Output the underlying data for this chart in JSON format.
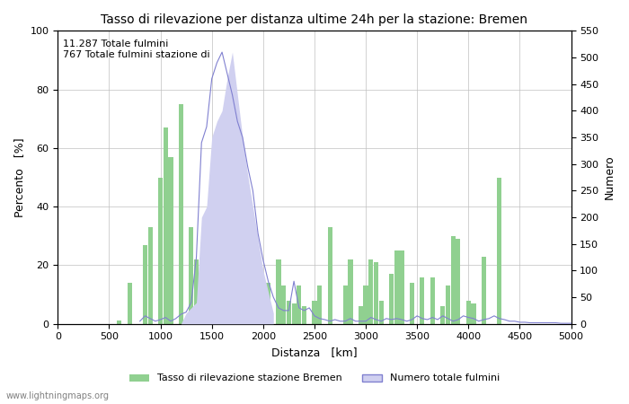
{
  "title": "Tasso di rilevazione per distanza ultime 24h per la stazione: Bremen",
  "annotation_line1": "11.287 Totale fulmini",
  "annotation_line2": "767 Totale fulmini stazione di",
  "xlabel": "Distanza   [km]",
  "ylabel_left": "Percento   [%]",
  "ylabel_right": "Numero",
  "xlim": [
    0,
    5000
  ],
  "ylim_left": [
    0,
    100
  ],
  "ylim_right": [
    0,
    550
  ],
  "yticks_left": [
    0,
    20,
    40,
    60,
    80,
    100
  ],
  "yticks_right": [
    0,
    50,
    100,
    150,
    200,
    250,
    300,
    350,
    400,
    450,
    500,
    550
  ],
  "xticks": [
    0,
    500,
    1000,
    1500,
    2000,
    2500,
    3000,
    3500,
    4000,
    4500,
    5000
  ],
  "watermark": "www.lightningmaps.org",
  "legend_green": "Tasso di rilevazione stazione Bremen",
  "legend_blue": "Numero totale fulmini",
  "bar_color": "#90d090",
  "fill_color": "#d0d0f0",
  "line_color": "#8080d0",
  "background_color": "#ffffff",
  "grid_color": "#c0c0c0",
  "green_bars_x": [
    600,
    650,
    700,
    750,
    800,
    850,
    900,
    950,
    1000,
    1050,
    1100,
    1150,
    1200,
    1250,
    1300,
    1350,
    1400,
    1450,
    1500,
    1550,
    1600,
    1650,
    1700,
    1750,
    1800,
    1850,
    1900,
    1950,
    2000,
    2050,
    2100,
    2150,
    2200,
    2250,
    2300,
    2350,
    2400,
    2450,
    2500,
    2550,
    2600,
    2650,
    2700,
    2750,
    2800,
    2850,
    2900,
    2950,
    3000,
    3050,
    3100,
    3150,
    3200,
    3250,
    3300,
    3350,
    3400,
    3450,
    3500,
    3550,
    3600,
    3650,
    3700,
    3750,
    3800,
    3850,
    3900,
    3950,
    4000,
    4050,
    4100,
    4150,
    4200,
    4250,
    4300,
    4350,
    4400,
    4450,
    4500,
    4550,
    4600,
    4650,
    4700,
    4750,
    4800,
    4850,
    4900,
    4950
  ],
  "green_bars_h": [
    1,
    0,
    14,
    0,
    0,
    27,
    33,
    0,
    50,
    67,
    57,
    0,
    75,
    0,
    33,
    22,
    10,
    7,
    8,
    7,
    13,
    12,
    0,
    0,
    0,
    0,
    6,
    7,
    0,
    14,
    0,
    22,
    13,
    8,
    7,
    13,
    6,
    0,
    8,
    13,
    0,
    33,
    0,
    0,
    13,
    22,
    0,
    6,
    13,
    22,
    21,
    8,
    0,
    17,
    25,
    25,
    0,
    14,
    0,
    16,
    0,
    16,
    0,
    6,
    13,
    30,
    29,
    0,
    8,
    7,
    0,
    23,
    0,
    0,
    50,
    0,
    0,
    0,
    0,
    0,
    0,
    0,
    0,
    0,
    0,
    0
  ],
  "blue_fill_x": [
    1200,
    1250,
    1300,
    1350,
    1400,
    1450,
    1500,
    1550,
    1600,
    1650,
    1700,
    1750,
    1800,
    1850,
    1900,
    1950,
    2000,
    2050,
    2100
  ],
  "blue_fill_y": [
    0,
    20,
    30,
    40,
    200,
    220,
    350,
    380,
    400,
    460,
    510,
    430,
    350,
    280,
    220,
    160,
    100,
    60,
    20
  ],
  "blue_line_x": [
    800,
    850,
    900,
    950,
    1000,
    1050,
    1100,
    1150,
    1200,
    1250,
    1300,
    1350,
    1400,
    1450,
    1500,
    1550,
    1600,
    1650,
    1700,
    1750,
    1800,
    1850,
    1900,
    1950,
    2000,
    2050,
    2100,
    2150,
    2200,
    2250,
    2300,
    2350,
    2400,
    2450,
    2500,
    2550,
    2600,
    2650,
    2700,
    2750,
    2800,
    2850,
    2900,
    2950,
    3000,
    3050,
    3100,
    3150,
    3200,
    3250,
    3300,
    3350,
    3400,
    3450,
    3500,
    3550,
    3600,
    3650,
    3700,
    3750,
    3800,
    3850,
    3900,
    3950,
    4000,
    4050,
    4100,
    4150,
    4200,
    4250,
    4300,
    4350,
    4400,
    4450,
    4500,
    4550,
    4600,
    4650,
    4700,
    4750,
    4800,
    4850,
    4900,
    4950,
    5000
  ],
  "blue_line_y": [
    5,
    15,
    10,
    5,
    8,
    12,
    5,
    10,
    18,
    22,
    40,
    125,
    340,
    370,
    460,
    490,
    510,
    470,
    430,
    380,
    350,
    295,
    250,
    170,
    120,
    80,
    50,
    30,
    25,
    25,
    80,
    30,
    25,
    30,
    15,
    10,
    8,
    5,
    8,
    5,
    5,
    10,
    5,
    5,
    5,
    12,
    8,
    5,
    10,
    8,
    10,
    8,
    5,
    8,
    15,
    10,
    8,
    12,
    8,
    15,
    10,
    5,
    8,
    15,
    12,
    10,
    5,
    8,
    10,
    15,
    10,
    8,
    5,
    5,
    3,
    3,
    2,
    2,
    2,
    2,
    2,
    2,
    1,
    1,
    1
  ]
}
